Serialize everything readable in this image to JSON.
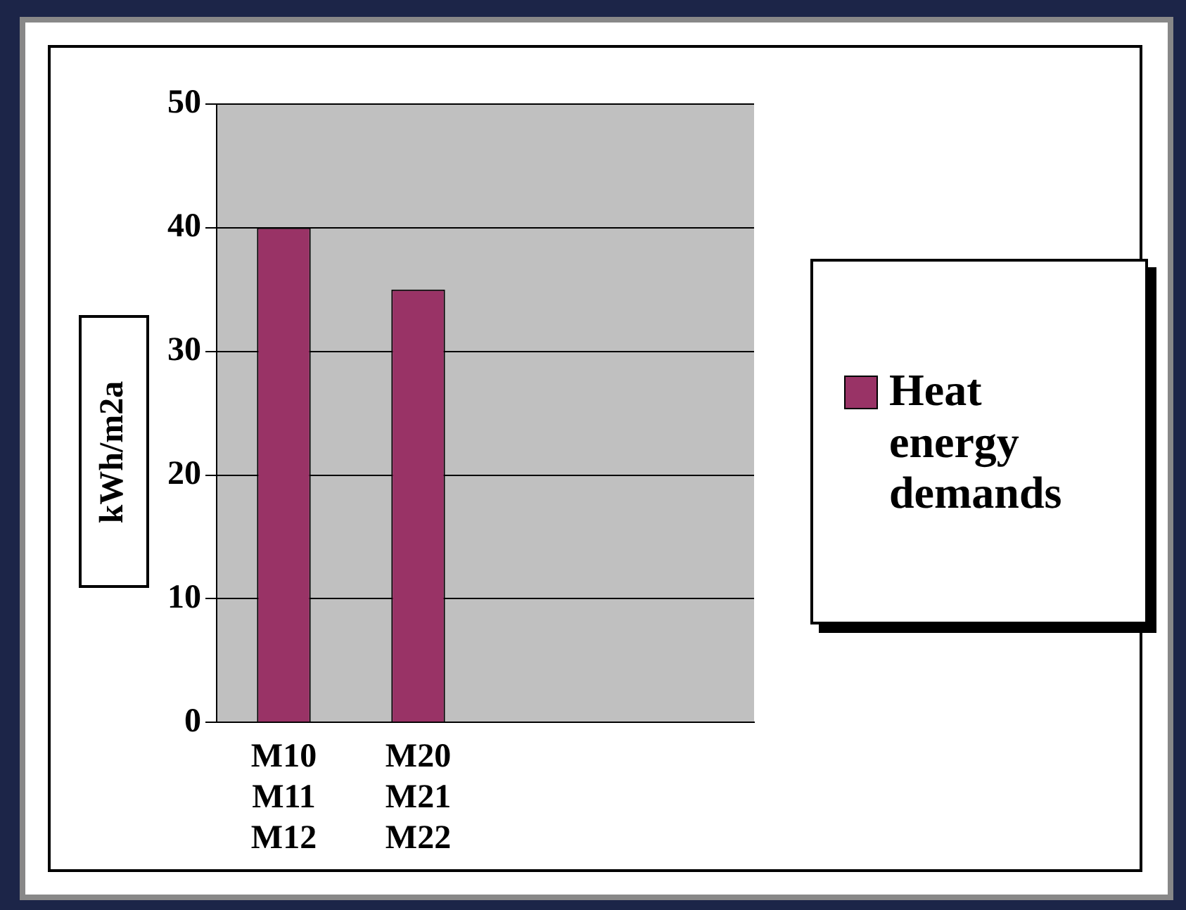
{
  "chart_data": {
    "type": "bar",
    "ylabel": "kWh/m2a",
    "categories": [
      "M10\nM11\nM12",
      "M20\nM21\nM22",
      null,
      null
    ],
    "series": [
      {
        "name": "Heat energy demands",
        "color": "#993366",
        "values": [
          40,
          35,
          null,
          null
        ]
      }
    ],
    "ylim": [
      0,
      50
    ],
    "yticks": [
      0,
      10,
      20,
      30,
      40,
      50
    ],
    "grid": "y",
    "legend": "right"
  }
}
